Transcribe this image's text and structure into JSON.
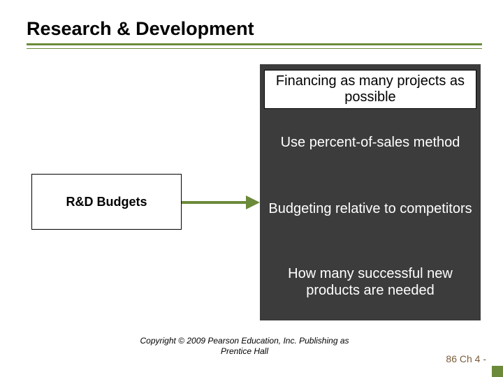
{
  "title": "Research & Development",
  "left_box_label": "R&D Budgets",
  "right_panel": {
    "financing": "Financing as many projects as possible",
    "percent": "Use percent-of-sales method",
    "competitors": "Budgeting relative to competitors",
    "products": "How many successful new products are needed"
  },
  "copyright": "Copyright © 2009 Pearson Education, Inc. Publishing as Prentice Hall",
  "page_number": "86 Ch 4 -",
  "colors": {
    "accent": "#6b8a3a",
    "dark_panel": "#3c3c3c",
    "page_num": "#7a5c3a"
  }
}
